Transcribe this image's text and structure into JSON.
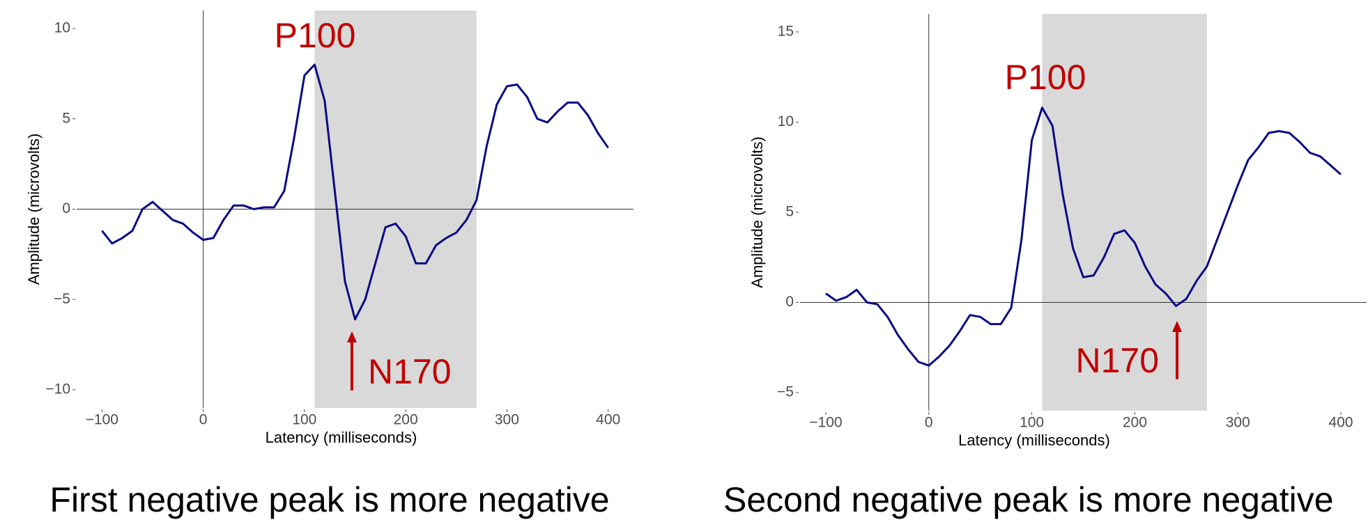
{
  "chart_data": [
    {
      "type": "line",
      "x_label": "Latency (milliseconds)",
      "y_label": "Amplitude (microvolts)",
      "xlim": [
        -125,
        425
      ],
      "ylim": [
        -11,
        11
      ],
      "xticks": [
        {
          "value": -100,
          "label": "−100"
        },
        0,
        100,
        200,
        300,
        400
      ],
      "yticks": [
        {
          "value": -10,
          "label": "−10"
        },
        {
          "value": -5,
          "label": "−5"
        },
        0,
        5,
        10
      ],
      "highlight": [
        110,
        270
      ],
      "annotations": [
        "P100",
        "N170"
      ],
      "caption": "First negative peak is more negative",
      "x": [
        -100,
        -90,
        -80,
        -70,
        -60,
        -50,
        -40,
        -30,
        -20,
        -10,
        0,
        10,
        20,
        30,
        40,
        50,
        60,
        70,
        80,
        90,
        100,
        110,
        120,
        130,
        140,
        150,
        160,
        170,
        180,
        190,
        200,
        210,
        220,
        230,
        240,
        250,
        260,
        270,
        280,
        290,
        300,
        310,
        320,
        330,
        340,
        350,
        360,
        370,
        380,
        390,
        400
      ],
      "series": [
        {
          "color": "#0a0a85",
          "values": [
            -1.2,
            -1.9,
            -1.6,
            -1.2,
            0.0,
            0.4,
            -0.1,
            -0.6,
            -0.8,
            -1.3,
            -1.7,
            -1.6,
            -0.6,
            0.2,
            0.2,
            0.0,
            0.1,
            0.1,
            1.0,
            4.0,
            7.4,
            8.0,
            6.0,
            1.0,
            -4.0,
            -6.1,
            -5.0,
            -3.0,
            -1.0,
            -0.8,
            -1.5,
            -3.0,
            -3.0,
            -2.0,
            -1.6,
            -1.3,
            -0.6,
            0.5,
            3.5,
            5.8,
            6.8,
            6.9,
            6.2,
            5.0,
            4.8,
            5.4,
            5.9,
            5.9,
            5.2,
            4.2,
            3.4
          ]
        }
      ]
    },
    {
      "type": "line",
      "x_label": "Latency (milliseconds)",
      "y_label": "Amplitude (microvolts)",
      "xlim": [
        -125,
        425
      ],
      "ylim": [
        -6,
        16
      ],
      "xticks": [
        {
          "value": -100,
          "label": "−100"
        },
        0,
        100,
        200,
        300,
        400
      ],
      "yticks": [
        {
          "value": -5,
          "label": "−5"
        },
        0,
        5,
        10,
        15
      ],
      "highlight": [
        110,
        270
      ],
      "annotations": [
        "P100",
        "N170"
      ],
      "caption": "Second negative peak is more negative",
      "x": [
        -100,
        -90,
        -80,
        -70,
        -60,
        -50,
        -40,
        -30,
        -20,
        -10,
        0,
        10,
        20,
        30,
        40,
        50,
        60,
        70,
        80,
        90,
        100,
        110,
        120,
        130,
        140,
        150,
        160,
        170,
        180,
        190,
        200,
        210,
        220,
        230,
        240,
        250,
        260,
        270,
        280,
        290,
        300,
        310,
        320,
        330,
        340,
        350,
        360,
        370,
        380,
        390,
        400
      ],
      "series": [
        {
          "color": "#0a0a85",
          "values": [
            0.5,
            0.1,
            0.3,
            0.7,
            0.0,
            -0.1,
            -0.8,
            -1.8,
            -2.6,
            -3.3,
            -3.5,
            -3.0,
            -2.4,
            -1.6,
            -0.7,
            -0.8,
            -1.2,
            -1.2,
            -0.3,
            3.5,
            9.0,
            10.8,
            9.8,
            6.0,
            3.0,
            1.4,
            1.5,
            2.5,
            3.8,
            4.0,
            3.3,
            2.0,
            1.0,
            0.5,
            -0.2,
            0.2,
            1.2,
            2.0,
            3.5,
            5.0,
            6.5,
            7.9,
            8.6,
            9.4,
            9.5,
            9.4,
            8.9,
            8.3,
            8.1,
            7.6,
            7.1
          ]
        }
      ]
    }
  ]
}
